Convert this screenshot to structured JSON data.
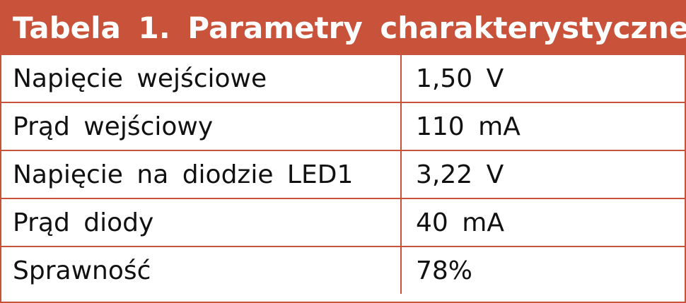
{
  "table": {
    "title": "Tabela 1. Parametry charakterystyczne",
    "rows": [
      [
        "Napięcie wejściowe",
        "1,50 V"
      ],
      [
        "Prąd wejściowy",
        "110 mA"
      ],
      [
        "Napięcie na diodzie LED1",
        "3,22 V"
      ],
      [
        "Prąd diody",
        "40 mA"
      ],
      [
        "Sprawność",
        "78%"
      ]
    ]
  }
}
